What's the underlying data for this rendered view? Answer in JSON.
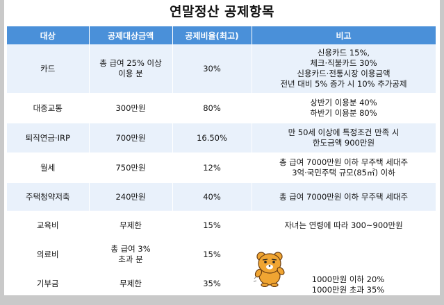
{
  "title": "연말정산 공제항목",
  "columns": [
    "대상",
    "공제대상금액",
    "공제비율(최고)",
    "비고"
  ],
  "rows": [
    {
      "target": "카드",
      "amount": [
        "총 급여 25% 이상",
        "이용 분"
      ],
      "rate": "30%",
      "note": [
        "신용카드 15%,",
        "체크·직불카드 30%",
        "신용카드·전통시장 이용금액",
        "전년 대비 5% 증가 시 10% 추가공제"
      ]
    },
    {
      "target": "대중교통",
      "amount": [
        "300만원"
      ],
      "rate": "80%",
      "note": [
        "상반기 이용분 40%",
        "하반기 이용분 80%"
      ]
    },
    {
      "target": "퇴직연금·IRP",
      "amount": [
        "700만원"
      ],
      "rate": "16.50%",
      "note": [
        "만 50세 이상에 특정조건 만족 시",
        "한도금액 900만원"
      ]
    },
    {
      "target": "월세",
      "amount": [
        "750만원"
      ],
      "rate": "12%",
      "note": [
        "총 급여 7000만원 이하 무주택 세대주",
        "3억·국민주택 규모(85㎡) 이하"
      ]
    },
    {
      "target": "주택청약저축",
      "amount": [
        "240만원"
      ],
      "rate": "40%",
      "note": [
        "총 급여 7000만원 이하 무주택 세대주"
      ]
    },
    {
      "target": "교육비",
      "amount": [
        "무제한"
      ],
      "rate": "15%",
      "note": [
        "자녀는 연령에 따라 300~900만원"
      ]
    },
    {
      "target": "의료비",
      "amount": [
        "총 급여 3%",
        "초과 분"
      ],
      "rate": "15%",
      "note": []
    },
    {
      "target": "기부금",
      "amount": [
        "무제한"
      ],
      "rate": "35%",
      "note": []
    }
  ],
  "gift_note": [
    "1000만원 이하 20%",
    "1000만원 초과 35%"
  ],
  "colors": {
    "header": "#4a90d9",
    "stripe": "#e9f1fb",
    "background": "#c9c9c9"
  },
  "mascot_icon": "bear-character-icon"
}
